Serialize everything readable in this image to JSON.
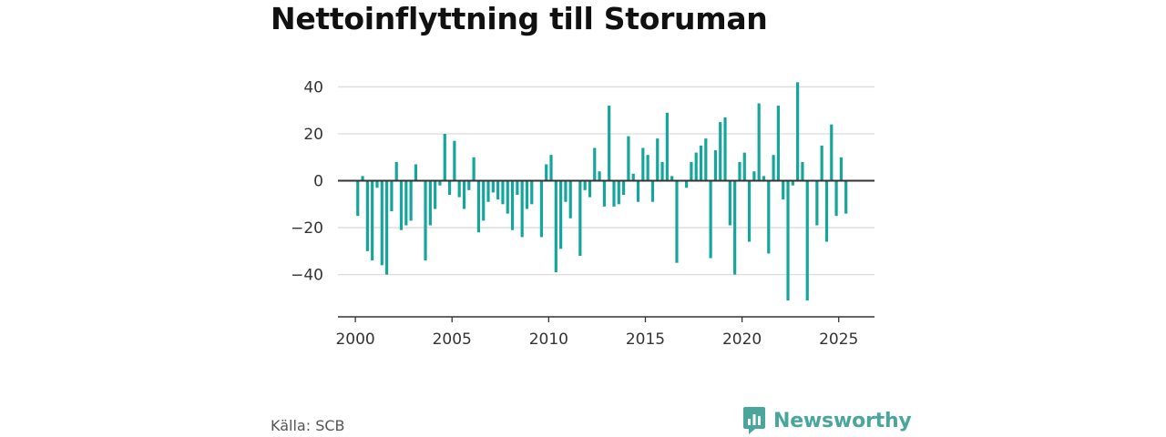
{
  "title": "Nettoinflyttning till Storuman",
  "source": "Källa: SCB",
  "brand": {
    "name": "Newsworthy",
    "icon": "newsworthy-logo-icon"
  },
  "colors": {
    "bar": "#14a59b",
    "grid": "#dcdcdc",
    "zero_line": "#333333",
    "axis": "#333333",
    "brand": "#4aa69c"
  },
  "chart_data": {
    "type": "bar",
    "xlabel": "",
    "ylabel": "",
    "grid": true,
    "ylim": [
      -58,
      46
    ],
    "xlim": [
      1999.1,
      2026.85
    ],
    "xticks": [
      2000,
      2005,
      2010,
      2015,
      2020,
      2025
    ],
    "yticks": [
      -40,
      -20,
      0,
      20,
      40
    ],
    "ytick_labels": [
      "−40",
      "−20",
      "0",
      "20",
      "40"
    ],
    "x": [
      2000.125,
      2000.375,
      2000.625,
      2000.875,
      2001.125,
      2001.375,
      2001.625,
      2001.875,
      2002.125,
      2002.375,
      2002.625,
      2002.875,
      2003.125,
      2003.375,
      2003.625,
      2003.875,
      2004.125,
      2004.375,
      2004.625,
      2004.875,
      2005.125,
      2005.375,
      2005.625,
      2005.875,
      2006.125,
      2006.375,
      2006.625,
      2006.875,
      2007.125,
      2007.375,
      2007.625,
      2007.875,
      2008.125,
      2008.375,
      2008.625,
      2008.875,
      2009.125,
      2009.375,
      2009.625,
      2009.875,
      2010.125,
      2010.375,
      2010.625,
      2010.875,
      2011.125,
      2011.375,
      2011.625,
      2011.875,
      2012.125,
      2012.375,
      2012.625,
      2012.875,
      2013.125,
      2013.375,
      2013.625,
      2013.875,
      2014.125,
      2014.375,
      2014.625,
      2014.875,
      2015.125,
      2015.375,
      2015.625,
      2015.875,
      2016.125,
      2016.375,
      2016.625,
      2016.875,
      2017.125,
      2017.375,
      2017.625,
      2017.875,
      2018.125,
      2018.375,
      2018.625,
      2018.875,
      2019.125,
      2019.375,
      2019.625,
      2019.875,
      2020.125,
      2020.375,
      2020.625,
      2020.875,
      2021.125,
      2021.375,
      2021.625,
      2021.875,
      2022.125,
      2022.375,
      2022.625,
      2022.875,
      2023.125,
      2023.375,
      2023.625,
      2023.875,
      2024.125,
      2024.375,
      2024.625,
      2024.875,
      2025.125,
      2025.375
    ],
    "values": [
      -15,
      2,
      -30,
      -34,
      -3,
      -36,
      -40,
      -13,
      8,
      -21,
      -19,
      -17,
      7,
      0,
      -34,
      -19,
      -12,
      -2,
      20,
      -6,
      17,
      -7,
      -12,
      -4,
      10,
      -22,
      -17,
      -9,
      -5,
      -8,
      -10,
      -14,
      -21,
      -6,
      -24,
      -12,
      -10,
      0,
      -24,
      7,
      11,
      -39,
      -29,
      -9,
      -16,
      0,
      -32,
      -4,
      -7,
      14,
      4,
      -11,
      32,
      -11,
      -10,
      -6,
      19,
      3,
      -9,
      14,
      11,
      -9,
      18,
      8,
      29,
      2,
      -35,
      0,
      -3,
      8,
      12,
      15,
      18,
      -33,
      13,
      25,
      27,
      -19,
      -40,
      8,
      12,
      -26,
      4,
      33,
      2,
      -31,
      11,
      32,
      -8,
      -51,
      -2,
      42,
      8,
      -51,
      0,
      -19,
      15,
      -26,
      24,
      -15,
      10,
      -14
    ]
  }
}
